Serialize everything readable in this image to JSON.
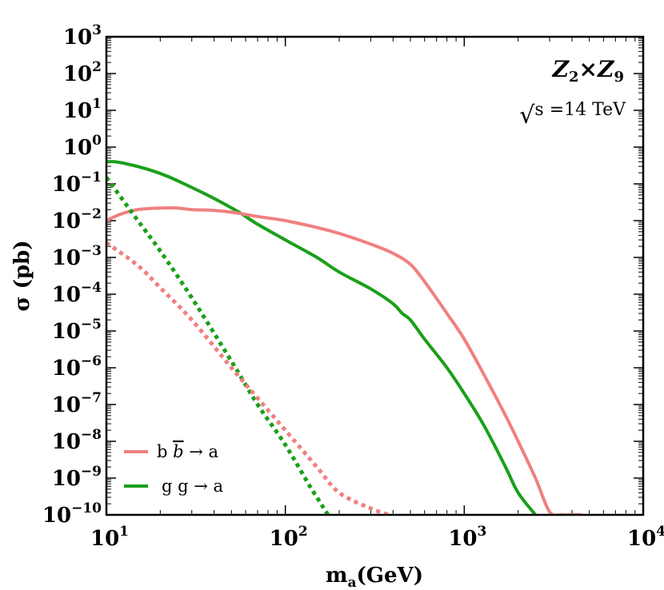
{
  "chart_data": {
    "type": "line",
    "xlabel": "m",
    "xlabel_sub": "a",
    "xlabel_unit": "(GeV)",
    "ylabel": "σ (pb)",
    "xscale": "log",
    "yscale": "log",
    "xlim": [
      10,
      10000
    ],
    "ylim": [
      1e-10,
      1000
    ],
    "x_ticks": [
      {
        "base": "10",
        "exp": "1"
      },
      {
        "base": "10",
        "exp": "2"
      },
      {
        "base": "10",
        "exp": "3"
      },
      {
        "base": "10",
        "exp": "4"
      }
    ],
    "y_ticks": [
      {
        "base": "10",
        "exp": "3"
      },
      {
        "base": "10",
        "exp": "2"
      },
      {
        "base": "10",
        "exp": "1"
      },
      {
        "base": "10",
        "exp": "0"
      },
      {
        "base": "10",
        "exp": "−1"
      },
      {
        "base": "10",
        "exp": "−2"
      },
      {
        "base": "10",
        "exp": "−3"
      },
      {
        "base": "10",
        "exp": "−4"
      },
      {
        "base": "10",
        "exp": "−5"
      },
      {
        "base": "10",
        "exp": "−6"
      },
      {
        "base": "10",
        "exp": "−7"
      },
      {
        "base": "10",
        "exp": "−8"
      },
      {
        "base": "10",
        "exp": "−9"
      },
      {
        "base": "10",
        "exp": "−10"
      }
    ],
    "annotations": {
      "model": {
        "z1": "Z",
        "s1": "2",
        "times": "×",
        "z2": "Z",
        "s2": "9"
      },
      "energy": {
        "root": "√",
        "s": "s",
        "text": " =14 TeV"
      }
    },
    "legend_position": "bottom-left",
    "legend": [
      {
        "label": "b b̄ → a",
        "parts": [
          "b ",
          "b",
          " → a"
        ],
        "color": "#f08080"
      },
      {
        "label": "g g → a",
        "parts": [
          "g g → a"
        ],
        "color": "#1aa01a"
      }
    ],
    "colors": {
      "bb": "#f08080",
      "gg": "#1aa01a"
    },
    "series": [
      {
        "id": "gg-solid",
        "color": "#1aa01a",
        "style": "solid",
        "x": [
          10,
          11,
          13,
          17,
          22,
          30,
          40,
          55,
          70,
          100,
          150,
          200,
          300,
          400,
          450,
          500,
          600,
          800,
          1000,
          1300,
          1700,
          2000,
          2500
        ],
        "y": [
          0.4,
          0.4,
          0.35,
          0.25,
          0.16,
          0.08,
          0.04,
          0.017,
          0.008,
          0.003,
          0.001,
          0.0004,
          0.00014,
          5.5e-05,
          3e-05,
          2e-05,
          6e-06,
          1e-06,
          2e-07,
          2.5e-08,
          2e-09,
          4e-10,
          1e-10
        ]
      },
      {
        "id": "bb-solid",
        "color": "#f08080",
        "style": "solid",
        "x": [
          10,
          12,
          15,
          20,
          25,
          30,
          40,
          50,
          70,
          100,
          150,
          200,
          300,
          400,
          500,
          600,
          800,
          1000,
          1300,
          1700,
          2000,
          2500,
          3000,
          3500,
          4000,
          4500
        ],
        "y": [
          0.01,
          0.015,
          0.02,
          0.022,
          0.022,
          0.02,
          0.019,
          0.017,
          0.013,
          0.01,
          0.0065,
          0.0045,
          0.0023,
          0.0013,
          0.00065,
          0.00022,
          3e-05,
          6e-06,
          6e-07,
          5e-08,
          1e-08,
          1e-09,
          1.2e-10,
          1e-10,
          1e-10,
          1e-10
        ]
      },
      {
        "id": "gg-dotted",
        "color": "#1aa01a",
        "style": "dotted",
        "x": [
          10,
          15,
          20,
          30,
          50,
          70,
          100,
          150,
          200,
          270
        ],
        "y": [
          0.15,
          0.01,
          0.0015,
          8e-05,
          1.5e-06,
          1e-07,
          8e-09,
          3e-10,
          3e-11,
          1e-10
        ]
      },
      {
        "id": "bb-dotted",
        "color": "#f08080",
        "style": "dotted",
        "x": [
          10,
          15,
          20,
          30,
          50,
          70,
          100,
          150,
          200,
          300,
          380
        ],
        "y": [
          0.0025,
          0.0006,
          0.00015,
          2e-05,
          1e-06,
          1.5e-07,
          2e-08,
          2e-09,
          4e-10,
          1.5e-10,
          1e-10
        ]
      }
    ]
  }
}
